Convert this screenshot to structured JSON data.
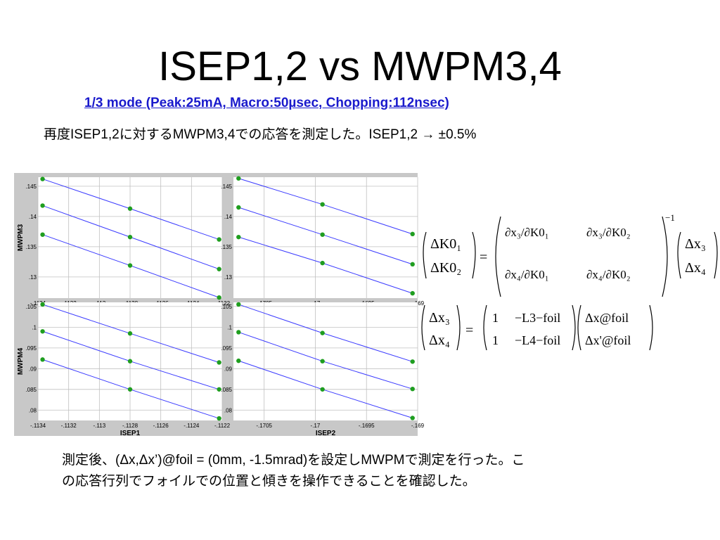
{
  "title": "ISEP1,2 vs MWPM3,4",
  "subtitle": "1/3 mode (Peak:25mA, Macro:50µsec, Chopping:112nsec)",
  "description": "再度ISEP1,2に対するMWPM3,4での応答を測定した。ISEP1,2 → ±0.5%",
  "footer_lines": [
    "測定後、(Δx,Δx’)@foil = (0mm, -1.5mrad)を設定しMWPMで測定を行った。こ",
    "の応答行列でフォイルでの位置と傾きを操作できることを確認した。"
  ],
  "equations": {
    "eq1": {
      "lhs": [
        "ΔK0₁",
        "ΔK0₂"
      ],
      "matrix": [
        [
          "∂x₃/∂K0₁",
          "∂x₃/∂K0₂"
        ],
        [
          "∂x₄/∂K0₁",
          "∂x₄/∂K0₂"
        ]
      ],
      "power": "−1",
      "rhs": [
        "Δx₃",
        "Δx₄"
      ]
    },
    "eq2": {
      "lhs": [
        "Δx₃",
        "Δx₄"
      ],
      "matrix": [
        [
          "1",
          "−L3−foil"
        ],
        [
          "1",
          "−L4−foil"
        ]
      ],
      "rhs": [
        "Δx@foil",
        "Δx'@foil"
      ]
    }
  },
  "colors": {
    "line": "#3b3bff",
    "marker": "#1f9e1f",
    "panel_bg": "#ffffff",
    "grid": "#c0c0c0",
    "frame": "#c8c8c8",
    "subtitle": "#1a1acc"
  },
  "chart_data": [
    {
      "type": "scatter",
      "xlabel": "",
      "ylabel": "MWPM3",
      "xticks": [
        "-.1134",
        "-.1132",
        "-.113",
        "-.1128",
        "-.1126",
        "-.1124",
        "-.1122"
      ],
      "yticks": [
        ".13",
        ".135",
        ".14",
        ".145"
      ],
      "xlim": [
        -0.1134,
        -0.1122
      ],
      "ylim": [
        0.1265,
        0.1465
      ],
      "grid": true,
      "series": [
        {
          "x": [
            -0.11337,
            -0.1128,
            -0.11222
          ],
          "y": [
            0.1462,
            0.1413,
            0.1362
          ]
        },
        {
          "x": [
            -0.11337,
            -0.1128,
            -0.11222
          ],
          "y": [
            0.1418,
            0.1366,
            0.1313
          ]
        },
        {
          "x": [
            -0.11337,
            -0.1128,
            -0.11222
          ],
          "y": [
            0.137,
            0.1319,
            0.1266
          ]
        }
      ]
    },
    {
      "type": "scatter",
      "xlabel": "",
      "ylabel": "",
      "xticks": [
        "-.1705",
        "-.17",
        "-.1695",
        "-.169"
      ],
      "yticks": [
        ".13",
        ".135",
        ".14",
        ".145"
      ],
      "xlim": [
        -0.1708,
        -0.169
      ],
      "ylim": [
        0.1265,
        0.1465
      ],
      "grid": true,
      "series": [
        {
          "x": [
            -0.17075,
            -0.16993,
            -0.16905
          ],
          "y": [
            0.1463,
            0.142,
            0.1371
          ]
        },
        {
          "x": [
            -0.17075,
            -0.16993,
            -0.16905
          ],
          "y": [
            0.1415,
            0.137,
            0.1321
          ]
        },
        {
          "x": [
            -0.17075,
            -0.16993,
            -0.16905
          ],
          "y": [
            0.1366,
            0.1323,
            0.1273
          ]
        }
      ]
    },
    {
      "type": "scatter",
      "xlabel": "ISEP1",
      "ylabel": "MWPM4",
      "xticks": [
        "-.1134",
        "-.1132",
        "-.113",
        "-.1128",
        "-.1126",
        "-.1124",
        "-.1122"
      ],
      "yticks": [
        ".08",
        ".085",
        ".09",
        ".095",
        ".1",
        ".105"
      ],
      "xlim": [
        -0.1134,
        -0.1122
      ],
      "ylim": [
        0.0775,
        0.106
      ],
      "grid": true,
      "series": [
        {
          "x": [
            -0.11337,
            -0.1128,
            -0.11222
          ],
          "y": [
            0.1055,
            0.0985,
            0.0915
          ]
        },
        {
          "x": [
            -0.11337,
            -0.1128,
            -0.11222
          ],
          "y": [
            0.099,
            0.0918,
            0.085
          ]
        },
        {
          "x": [
            -0.11337,
            -0.1128,
            -0.11222
          ],
          "y": [
            0.0922,
            0.085,
            0.078
          ]
        }
      ]
    },
    {
      "type": "scatter",
      "xlabel": "ISEP2",
      "ylabel": "",
      "xticks": [
        "-.1705",
        "-.17",
        "-.1695",
        "-.169"
      ],
      "yticks": [
        ".08",
        ".085",
        ".09",
        ".095",
        ".1",
        ".105"
      ],
      "xlim": [
        -0.1708,
        -0.169
      ],
      "ylim": [
        0.0775,
        0.106
      ],
      "grid": true,
      "series": [
        {
          "x": [
            -0.17075,
            -0.16993,
            -0.16905
          ],
          "y": [
            0.1055,
            0.0986,
            0.0917
          ]
        },
        {
          "x": [
            -0.17075,
            -0.16993,
            -0.16905
          ],
          "y": [
            0.0988,
            0.0918,
            0.0851
          ]
        },
        {
          "x": [
            -0.17075,
            -0.16993,
            -0.16905
          ],
          "y": [
            0.0919,
            0.085,
            0.0781
          ]
        }
      ]
    }
  ]
}
